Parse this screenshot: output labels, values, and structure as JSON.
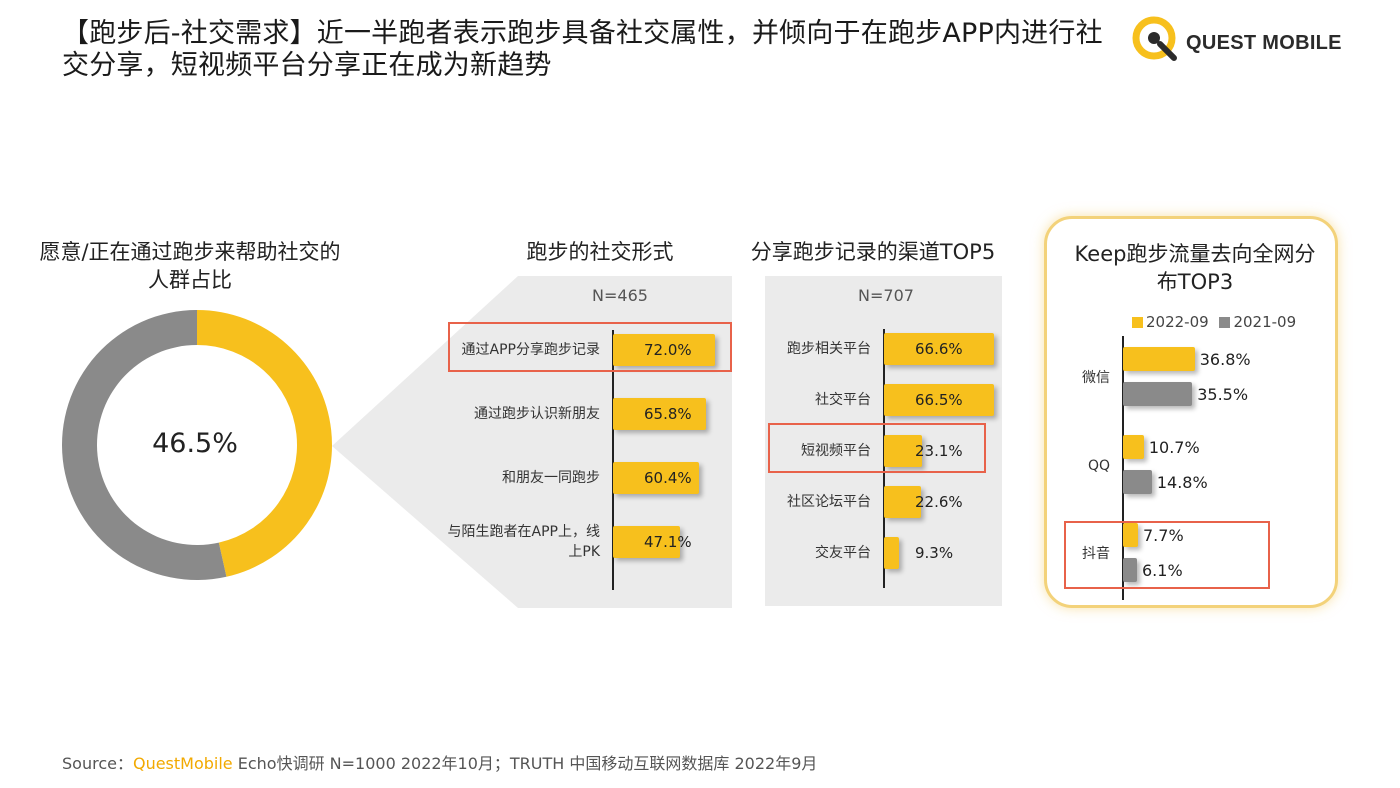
{
  "title": "【跑步后-社交需求】近一半跑者表示跑步具备社交属性，并倾向于在跑步APP内进行社交分享，短视频平台分享正在成为新趋势",
  "logo": {
    "text": "QUEST MOBILE",
    "icon": "quest-mobile-logo-icon"
  },
  "colors": {
    "accent": "#f7c01d",
    "gray": "#8a8a8a",
    "highlight": "#e8624a",
    "frame": "#f3d27a"
  },
  "chart_data": [
    {
      "type": "pie",
      "title": "愿意/正在通过跑步来帮助社交的人群占比",
      "center_label": "46.5%",
      "categories": [
        "",
        ""
      ],
      "values": [
        46.5,
        53.5
      ],
      "colors": [
        "#f7c01d",
        "#8a8a8a"
      ]
    },
    {
      "type": "bar",
      "orientation": "horizontal",
      "title": "跑步的社交形式",
      "sample": "N=465",
      "categories": [
        "通过APP分享跑步记录",
        "通过跑步认识新朋友",
        "和朋友一同跑步",
        "与陌生跑者在APP上，线上PK"
      ],
      "values": [
        72.0,
        65.8,
        60.4,
        47.1
      ],
      "labels": [
        "72.0%",
        "65.8%",
        "60.4%",
        "47.1%"
      ],
      "highlighted": "通过APP分享跑步记录"
    },
    {
      "type": "bar",
      "orientation": "horizontal",
      "title": "分享跑步记录的渠道TOP5",
      "sample": "N=707",
      "categories": [
        "跑步相关平台",
        "社交平台",
        "短视频平台",
        "社区论坛平台",
        "交友平台"
      ],
      "values": [
        66.6,
        66.5,
        23.1,
        22.6,
        9.3
      ],
      "labels": [
        "66.6%",
        "66.5%",
        "23.1%",
        "22.6%",
        "9.3%"
      ],
      "highlighted": "短视频平台"
    },
    {
      "type": "bar",
      "orientation": "horizontal",
      "title": "Keep跑步流量去向全网分布TOP3",
      "categories": [
        "微信",
        "QQ",
        "抖音"
      ],
      "series": [
        {
          "name": "2022-09",
          "values": [
            36.8,
            10.7,
            7.7
          ],
          "labels": [
            "36.8%",
            "10.7%",
            "7.7%"
          ],
          "color": "#f7c01d"
        },
        {
          "name": "2021-09",
          "values": [
            35.5,
            14.8,
            6.1
          ],
          "labels": [
            "35.5%",
            "14.8%",
            "6.1%"
          ],
          "color": "#8a8a8a"
        }
      ],
      "legend": "top",
      "highlighted": "抖音"
    }
  ],
  "source": {
    "prefix": "Source：",
    "brand": "QuestMobile",
    "rest": " Echo快调研 N=1000 2022年10月；TRUTH 中国移动互联网数据库 2022年9月"
  }
}
